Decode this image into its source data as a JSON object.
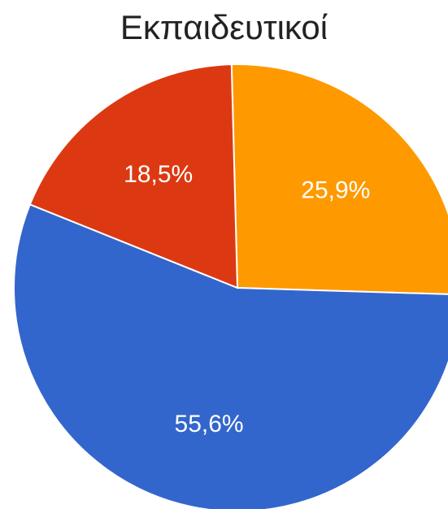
{
  "chart_data": {
    "type": "pie",
    "title": "Εκπαιδευτικοί",
    "slices": [
      {
        "label": "25,9%",
        "value": 25.9,
        "color": "#ff9900"
      },
      {
        "label": "55,6%",
        "value": 55.6,
        "color": "#3366cc"
      },
      {
        "label": "18,5%",
        "value": 18.5,
        "color": "#dc3912"
      }
    ],
    "start_angle_deg": -1.5,
    "direction": "clockwise"
  }
}
